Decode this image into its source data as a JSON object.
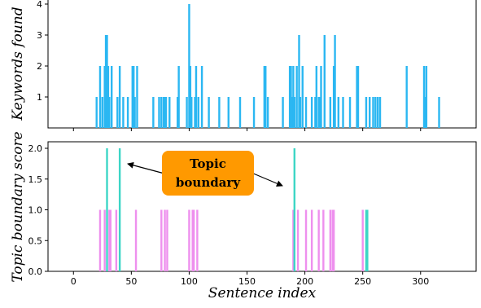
{
  "chart_data": [
    {
      "type": "bar",
      "ylabel": "Keywords found",
      "xlim": [
        -22,
        348
      ],
      "ylim": [
        0,
        4
      ],
      "xticks": [
        0,
        50,
        100,
        150,
        200,
        250,
        300
      ],
      "yticks": [
        1,
        2,
        3,
        4
      ],
      "grid": false,
      "series": [
        {
          "color": "#2bb7f2",
          "x": [
            20,
            23,
            25,
            27,
            28,
            29,
            30,
            31,
            33,
            38,
            40,
            43,
            47,
            51,
            52,
            53,
            55,
            69,
            74,
            76,
            78,
            79,
            80,
            83,
            90,
            91,
            98,
            100,
            101,
            102,
            105,
            106,
            108,
            111,
            117,
            126,
            134,
            144,
            156,
            165,
            166,
            168,
            181,
            187,
            188,
            189,
            190,
            191,
            193,
            195,
            196,
            198,
            201,
            206,
            209,
            210,
            212,
            213,
            214,
            217,
            222,
            225,
            226,
            229,
            233,
            239,
            245,
            246,
            253,
            256,
            259,
            261,
            263,
            265,
            288,
            303,
            304,
            305,
            316
          ],
          "values": [
            1,
            2,
            1,
            2,
            3,
            3,
            2,
            1,
            2,
            1,
            2,
            1,
            1,
            2,
            2,
            1,
            2,
            1,
            1,
            1,
            1,
            1,
            1,
            1,
            1,
            2,
            1,
            4,
            2,
            1,
            1,
            2,
            1,
            2,
            1,
            1,
            1,
            1,
            1,
            2,
            2,
            1,
            1,
            2,
            2,
            1,
            2,
            1,
            2,
            3,
            1,
            2,
            1,
            1,
            1,
            2,
            1,
            1,
            2,
            3,
            1,
            2,
            3,
            1,
            1,
            1,
            2,
            2,
            1,
            1,
            1,
            1,
            1,
            1,
            2,
            2,
            1,
            2,
            1
          ]
        }
      ]
    },
    {
      "type": "bar",
      "xlabel": "Sentence index",
      "ylabel": "Topic boundary score",
      "xlim": [
        -22,
        348
      ],
      "ylim": [
        0,
        2.1
      ],
      "xticks": [
        0,
        50,
        100,
        150,
        200,
        250,
        300
      ],
      "yticks": [
        0.0,
        0.5,
        1.0,
        1.5,
        2.0
      ],
      "ytick_labels": [
        "0.0",
        "0.5",
        "1.0",
        "1.5",
        "2.0"
      ],
      "grid": false,
      "series": [
        {
          "color": "#ee90ee",
          "x": [
            23,
            27,
            31,
            32,
            37,
            54,
            76,
            79,
            81,
            100,
            103,
            104,
            107,
            190,
            194,
            201,
            206,
            212,
            216,
            222,
            224,
            225,
            250
          ],
          "values": [
            1,
            1,
            1,
            1,
            1,
            1,
            1,
            1,
            1,
            1,
            1,
            1,
            1,
            1,
            1,
            1,
            1,
            1,
            1,
            1,
            1,
            1,
            1
          ]
        },
        {
          "color": "#3dd6c6",
          "x": [
            29,
            40,
            191,
            253,
            254
          ],
          "values": [
            2,
            2,
            2,
            1,
            1
          ]
        }
      ],
      "annotation": {
        "text_lines": [
          "Topic",
          "boundary"
        ],
        "box_color": "#ff9900",
        "arrow_targets": [
          40,
          190
        ]
      }
    }
  ]
}
